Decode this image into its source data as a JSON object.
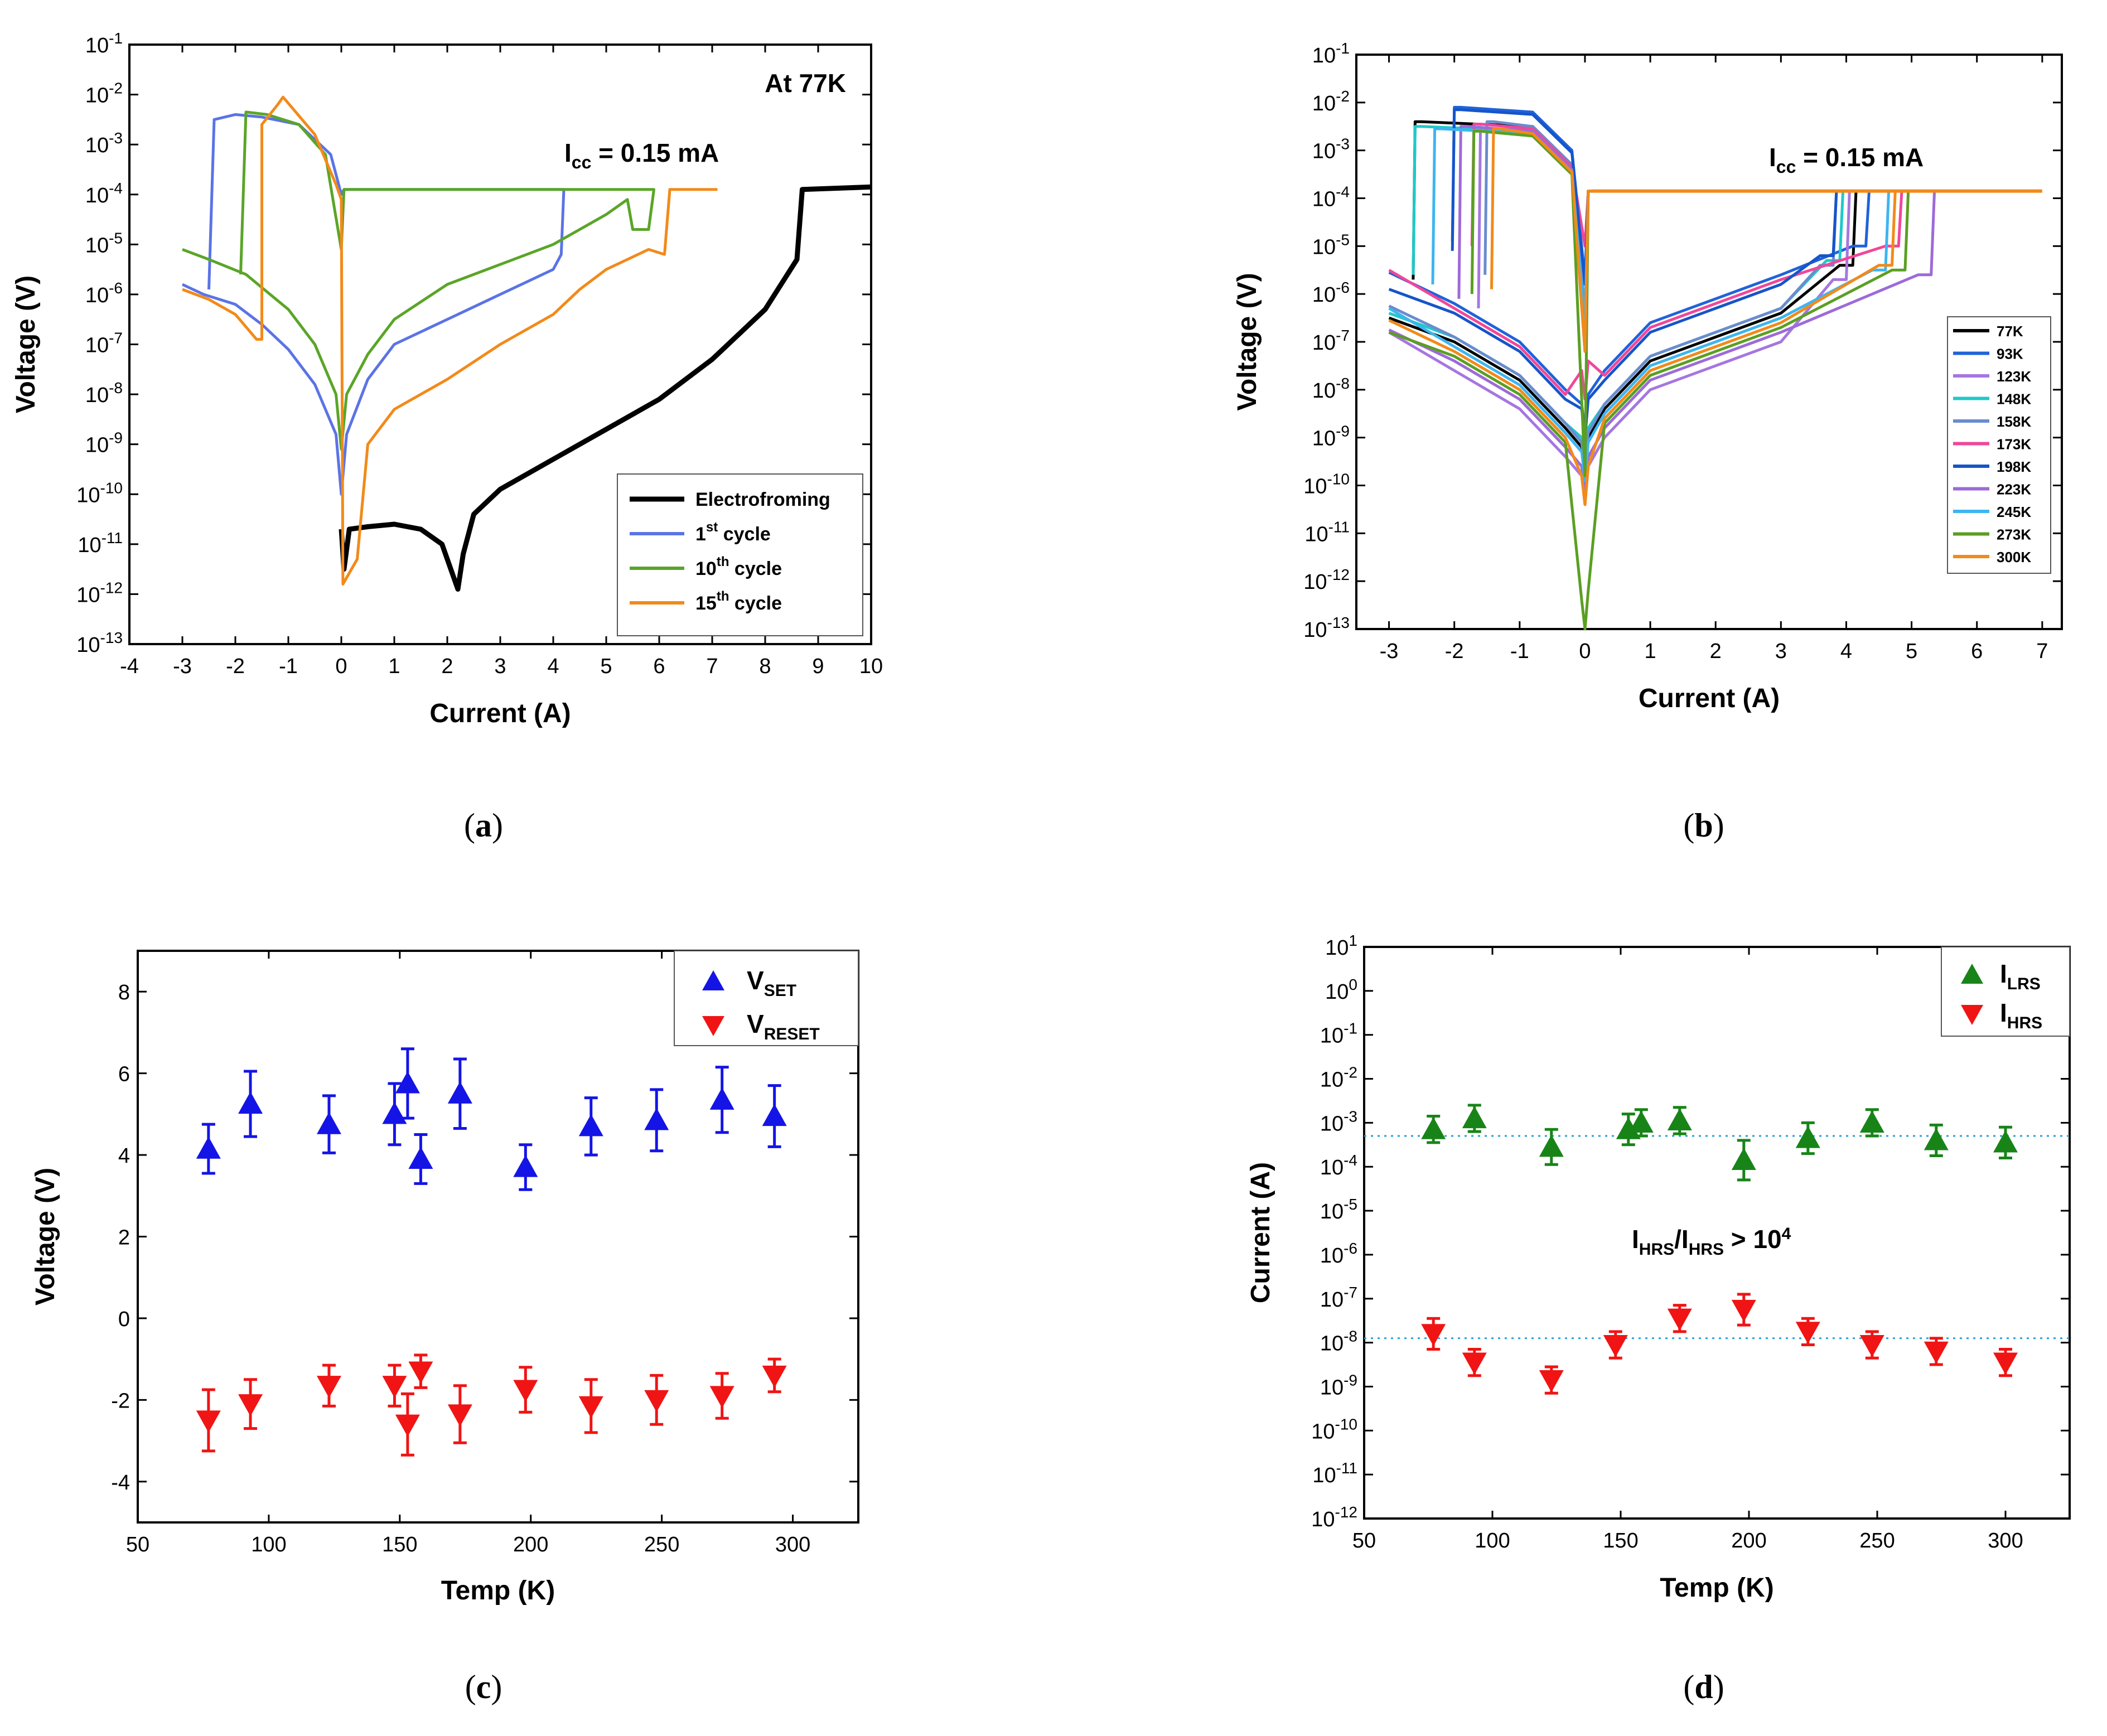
{
  "chart_data": [
    {
      "id": "a",
      "type": "line",
      "caption": "a",
      "title": "At 77K",
      "annotation": {
        "text": "I",
        "sub": "cc",
        "rest": " = 0.15 mA"
      },
      "xlabel": "Current (A)",
      "ylabel": "Voltage (V)",
      "xlim": [
        -4,
        10
      ],
      "ylim_exp": [
        -13,
        -1
      ],
      "yscale": "log",
      "xticks": [
        "-4",
        "-3",
        "-2",
        "-1",
        "0",
        "1",
        "2",
        "3",
        "4",
        "5",
        "6",
        "7",
        "8",
        "9",
        "10"
      ],
      "yticks": [
        "-1",
        "-2",
        "-3",
        "-4",
        "-5",
        "-6",
        "-7",
        "-8",
        "-9",
        "-10",
        "-11",
        "-12",
        "-13"
      ],
      "legend": [
        {
          "label": "Electrofroming",
          "sup": "",
          "rest": "",
          "color": "#000000"
        },
        {
          "label": "1",
          "sup": "st",
          "rest": " cycle",
          "color": "#5b73e6"
        },
        {
          "label": "10",
          "sup": "th",
          "rest": " cycle",
          "color": "#5aa528"
        },
        {
          "label": "15",
          "sup": "th",
          "rest": " cycle",
          "color": "#f28a1a"
        }
      ],
      "series": [
        {
          "name": "Electrofroming",
          "color": "#000000",
          "width": 9,
          "points": [
            [
              0,
              -10.7
            ],
            [
              0.05,
              -11.5
            ],
            [
              0.15,
              -10.7
            ],
            [
              0.5,
              -10.65
            ],
            [
              1,
              -10.6
            ],
            [
              1.5,
              -10.7
            ],
            [
              1.9,
              -11.0
            ],
            [
              2.2,
              -11.9
            ],
            [
              2.3,
              -11.2
            ],
            [
              2.5,
              -10.4
            ],
            [
              3,
              -9.9
            ],
            [
              4,
              -9.3
            ],
            [
              5,
              -8.7
            ],
            [
              6,
              -8.1
            ],
            [
              7,
              -7.3
            ],
            [
              8,
              -6.3
            ],
            [
              8.6,
              -5.3
            ],
            [
              8.7,
              -3.9
            ],
            [
              10,
              -3.85
            ]
          ]
        },
        {
          "name": "1st cycle",
          "color": "#5b73e6",
          "width": 5,
          "points": [
            [
              -3,
              -5.8
            ],
            [
              -2.6,
              -6.0
            ],
            [
              -2,
              -6.2
            ],
            [
              -1.5,
              -6.6
            ],
            [
              -1,
              -7.1
            ],
            [
              -0.5,
              -7.8
            ],
            [
              -0.1,
              -8.8
            ],
            [
              0,
              -10.0
            ],
            [
              0.1,
              -8.8
            ],
            [
              0.5,
              -7.7
            ],
            [
              1,
              -7.0
            ],
            [
              2,
              -6.5
            ],
            [
              3,
              -6.0
            ],
            [
              4,
              -5.5
            ],
            [
              4.15,
              -5.2
            ],
            [
              4.2,
              -3.9
            ],
            [
              0.05,
              -3.9
            ],
            [
              0,
              -4.0
            ],
            [
              -0.2,
              -3.2
            ],
            [
              -0.8,
              -2.6
            ],
            [
              -1.5,
              -2.45
            ],
            [
              -2,
              -2.4
            ],
            [
              -2.4,
              -2.5
            ],
            [
              -2.5,
              -5.9
            ]
          ]
        },
        {
          "name": "10th cycle",
          "color": "#5aa528",
          "width": 5,
          "points": [
            [
              -3,
              -5.1
            ],
            [
              -2.5,
              -5.3
            ],
            [
              -1.8,
              -5.6
            ],
            [
              -1,
              -6.3
            ],
            [
              -0.5,
              -7.0
            ],
            [
              -0.1,
              -8.0
            ],
            [
              0,
              -9.1
            ],
            [
              0.1,
              -8.0
            ],
            [
              0.5,
              -7.2
            ],
            [
              1,
              -6.5
            ],
            [
              2,
              -5.8
            ],
            [
              3,
              -5.4
            ],
            [
              4,
              -5.0
            ],
            [
              5,
              -4.4
            ],
            [
              5.4,
              -4.1
            ],
            [
              5.5,
              -4.7
            ],
            [
              5.8,
              -4.7
            ],
            [
              5.9,
              -3.9
            ],
            [
              0.05,
              -3.9
            ],
            [
              0,
              -5.1
            ],
            [
              -0.3,
              -3.2
            ],
            [
              -0.8,
              -2.6
            ],
            [
              -1.4,
              -2.4
            ],
            [
              -1.8,
              -2.35
            ],
            [
              -1.9,
              -5.6
            ]
          ]
        },
        {
          "name": "15th cycle",
          "color": "#f28a1a",
          "width": 5,
          "points": [
            [
              -3,
              -5.9
            ],
            [
              -2.5,
              -6.1
            ],
            [
              -2,
              -6.4
            ],
            [
              -1.6,
              -6.9
            ],
            [
              -1.5,
              -6.9
            ],
            [
              -1.5,
              -2.6
            ],
            [
              -1.2,
              -2.2
            ],
            [
              -1.1,
              -2.05
            ],
            [
              -0.5,
              -2.8
            ],
            [
              -0.1,
              -3.8
            ],
            [
              0,
              -4.1
            ],
            [
              0.03,
              -11.8
            ],
            [
              0.3,
              -11.3
            ],
            [
              0.5,
              -9.0
            ],
            [
              1,
              -8.3
            ],
            [
              2,
              -7.7
            ],
            [
              3,
              -7.0
            ],
            [
              4,
              -6.4
            ],
            [
              4.5,
              -5.9
            ],
            [
              5,
              -5.5
            ],
            [
              5.8,
              -5.1
            ],
            [
              6.1,
              -5.2
            ],
            [
              6.2,
              -3.9
            ],
            [
              7.1,
              -3.9
            ]
          ]
        }
      ]
    },
    {
      "id": "b",
      "type": "line",
      "caption": "b",
      "annotation": {
        "text": "I",
        "sub": "cc",
        "rest": " = 0.15 mA"
      },
      "xlabel": "Current (A)",
      "ylabel": "Voltage (V)",
      "xlim": [
        -3.5,
        7.3
      ],
      "ylim_exp": [
        -13,
        -1
      ],
      "yscale": "log",
      "xticks": [
        "-3",
        "-2",
        "-1",
        "0",
        "1",
        "2",
        "3",
        "4",
        "5",
        "6",
        "7"
      ],
      "yticks": [
        "-1",
        "-2",
        "-3",
        "-4",
        "-5",
        "-6",
        "-7",
        "-8",
        "-9",
        "-10",
        "-11",
        "-12",
        "-13"
      ],
      "legend": [
        {
          "label": "77K",
          "color": "#000000"
        },
        {
          "label": "93K",
          "color": "#1f63d9"
        },
        {
          "label": "123K",
          "color": "#a676e0"
        },
        {
          "label": "148K",
          "color": "#1fc9c9"
        },
        {
          "label": "158K",
          "color": "#6a8cce"
        },
        {
          "label": "173K",
          "color": "#f0479a"
        },
        {
          "label": "198K",
          "color": "#1655c9"
        },
        {
          "label": "223K",
          "color": "#9d6ad8"
        },
        {
          "label": "245K",
          "color": "#3db5f0"
        },
        {
          "label": "273K",
          "color": "#5a9f22"
        },
        {
          "label": "300K",
          "color": "#f28a1a"
        }
      ],
      "series": [
        {
          "name": "77K",
          "set": 4.1,
          "reset": -2.6,
          "pk": -2.4,
          "lo": -6.0,
          "hi": -5.4,
          "min": -9.8
        },
        {
          "name": "93K",
          "set": 4.3,
          "reset": -2.0,
          "pk": -2.1,
          "lo": -5.2,
          "hi": -5.0,
          "min": -8.9
        },
        {
          "name": "123K",
          "set": 4.0,
          "reset": -1.6,
          "pk": -2.6,
          "lo": -6.6,
          "hi": -5.7,
          "min": -10.4
        },
        {
          "name": "148K",
          "set": 3.9,
          "reset": -2.6,
          "pk": -2.5,
          "lo": -5.9,
          "hi": -5.3,
          "min": -9.6
        },
        {
          "name": "158K",
          "set": 3.8,
          "reset": -1.5,
          "pk": -2.4,
          "lo": -5.9,
          "hi": -5.4,
          "min": -9.7
        },
        {
          "name": "173K",
          "set": 4.8,
          "reset": -1.7,
          "pk": -2.45,
          "lo": -5.3,
          "hi": -5.0,
          "min": -8.2
        },
        {
          "name": "198K",
          "set": 3.8,
          "reset": -2.0,
          "pk": -2.15,
          "lo": -5.4,
          "hi": -5.2,
          "min": -9.0
        },
        {
          "name": "223K",
          "set": 5.3,
          "reset": -1.9,
          "pk": -2.5,
          "lo": -6.4,
          "hi": -5.6,
          "min": -10.2
        },
        {
          "name": "245K",
          "set": 4.6,
          "reset": -2.3,
          "pk": -2.55,
          "lo": -6.1,
          "hi": -5.5,
          "min": -9.9
        },
        {
          "name": "273K",
          "set": 4.9,
          "reset": -1.7,
          "pk": -2.6,
          "lo": -6.3,
          "hi": -5.5,
          "min": -13.0
        },
        {
          "name": "300K",
          "set": 4.7,
          "reset": -1.4,
          "pk": -2.55,
          "lo": -6.2,
          "hi": -5.4,
          "min": -10.4
        }
      ]
    },
    {
      "id": "c",
      "type": "scatter",
      "caption": "c",
      "xlabel": "Temp (K)",
      "ylabel": "Voltage (V)",
      "xlim": [
        50,
        325
      ],
      "ylim": [
        -5,
        9
      ],
      "xticks": [
        "50",
        "100",
        "150",
        "200",
        "250",
        "300"
      ],
      "yticks": [
        "8",
        "6",
        "4",
        "2",
        "0",
        "-2",
        "-4"
      ],
      "legend": [
        {
          "label": "V",
          "sub": "SET",
          "color": "#1414e6"
        },
        {
          "label": "V",
          "sub": "RESET",
          "color": "#f01414"
        }
      ],
      "temps": [
        77,
        93,
        123,
        148,
        153,
        158,
        173,
        198,
        223,
        248,
        273,
        293
      ],
      "series": [
        {
          "name": "V_SET",
          "color": "#1414e6",
          "marker": "up",
          "values": [
            4.15,
            5.25,
            4.75,
            5.0,
            5.75,
            3.9,
            5.5,
            3.7,
            4.7,
            4.85,
            5.35,
            4.95
          ],
          "errors": [
            0.6,
            0.8,
            0.7,
            0.75,
            0.85,
            0.6,
            0.85,
            0.55,
            0.7,
            0.75,
            0.8,
            0.75
          ]
        },
        {
          "name": "V_RESET",
          "color": "#f01414",
          "marker": "down",
          "values": [
            -2.5,
            -2.1,
            -1.65,
            -1.65,
            -2.6,
            -1.3,
            -2.35,
            -1.75,
            -2.15,
            -2.0,
            -1.9,
            -1.4
          ],
          "errors": [
            0.75,
            0.6,
            0.5,
            0.5,
            0.75,
            0.4,
            0.7,
            0.55,
            0.65,
            0.6,
            0.55,
            0.4
          ]
        }
      ]
    },
    {
      "id": "d",
      "type": "scatter",
      "caption": "d",
      "xlabel": "Temp (K)",
      "ylabel": "Current (A)",
      "xlim": [
        50,
        325
      ],
      "ylim_exp": [
        -12,
        1
      ],
      "yscale": "log",
      "xticks": [
        "50",
        "100",
        "150",
        "200",
        "250",
        "300"
      ],
      "yticks": [
        "1",
        "0",
        "-1",
        "-2",
        "-3",
        "-4",
        "-5",
        "-6",
        "-7",
        "-8",
        "-9",
        "-10",
        "-11",
        "-12"
      ],
      "annotation": {
        "a": "I",
        "asub": "HRS",
        "b": "/I",
        "bsub": "HRS",
        "c": " > 10",
        "csup": "4"
      },
      "legend": [
        {
          "label": "I",
          "sub": "LRS",
          "color": "#188418"
        },
        {
          "label": "I",
          "sub": "HRS",
          "color": "#f01414"
        }
      ],
      "reference_lines": [
        {
          "value_exp": -3.3,
          "color": "#2a9fd6"
        },
        {
          "value_exp": -7.9,
          "color": "#2a9fd6"
        }
      ],
      "series": [
        {
          "name": "I_LRS",
          "color": "#188418",
          "marker": "up",
          "temps": [
            77,
            93,
            123,
            153,
            158,
            173,
            198,
            223,
            248,
            273,
            300
          ],
          "values_exp": [
            -3.15,
            -2.9,
            -3.55,
            -3.15,
            -3.0,
            -2.95,
            -3.85,
            -3.35,
            -3.0,
            -3.4,
            -3.45
          ],
          "err_exp": [
            0.3,
            0.3,
            0.4,
            0.35,
            0.3,
            0.3,
            0.45,
            0.35,
            0.3,
            0.35,
            0.35
          ]
        },
        {
          "name": "I_HRS",
          "color": "#f01414",
          "marker": "down",
          "temps": [
            77,
            93,
            123,
            148,
            173,
            198,
            223,
            248,
            273,
            300
          ],
          "values_exp": [
            -7.8,
            -8.45,
            -8.85,
            -8.05,
            -7.45,
            -7.25,
            -7.75,
            -8.05,
            -8.2,
            -8.45
          ],
          "err_exp": [
            0.35,
            0.3,
            0.3,
            0.3,
            0.3,
            0.35,
            0.3,
            0.3,
            0.3,
            0.3
          ]
        }
      ]
    }
  ]
}
